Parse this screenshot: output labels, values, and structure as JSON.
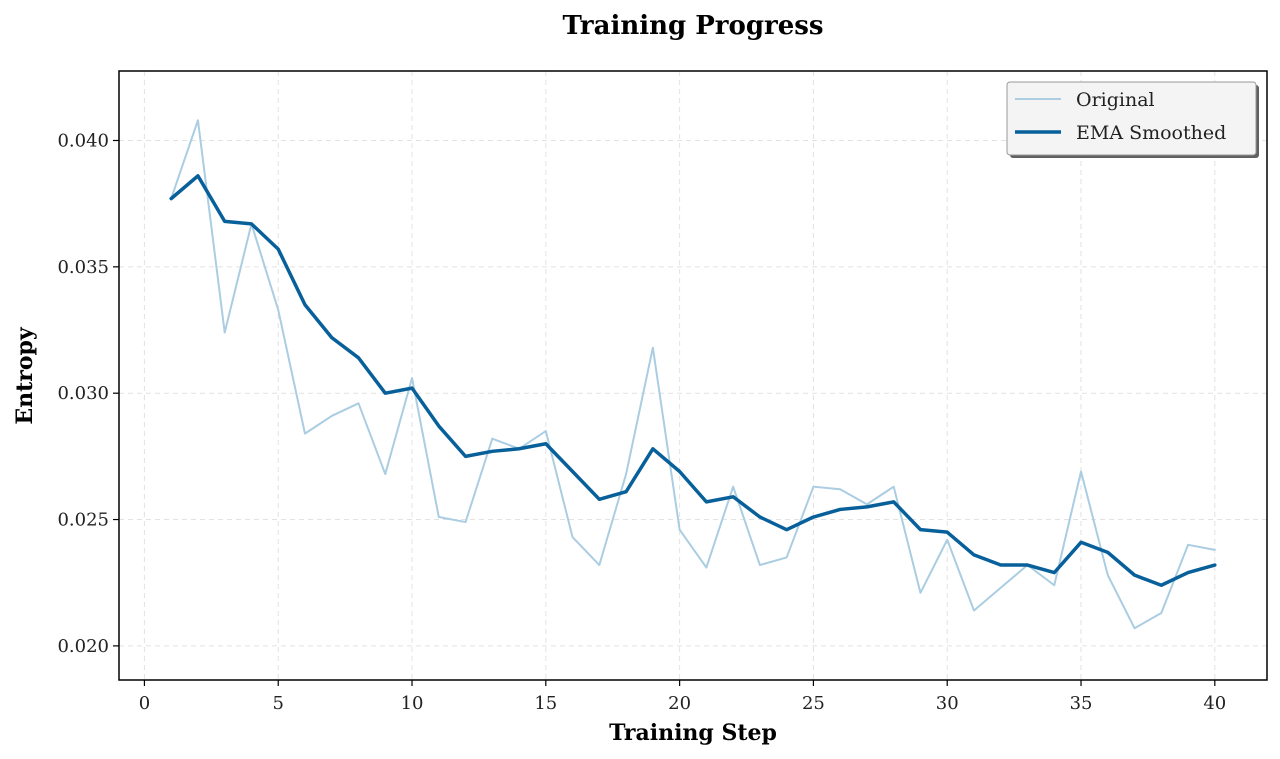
{
  "chart_data": {
    "type": "line",
    "title": "Training Progress",
    "xlabel": "Training Step",
    "ylabel": "Entropy",
    "xlim": [
      -0.95,
      41.95
    ],
    "ylim": [
      0.01865,
      0.04275
    ],
    "xticks": [
      0,
      5,
      10,
      15,
      20,
      25,
      30,
      35,
      40
    ],
    "xtick_labels": [
      "0",
      "5",
      "10",
      "15",
      "20",
      "25",
      "30",
      "35",
      "40"
    ],
    "yticks": [
      0.02,
      0.025,
      0.03,
      0.035,
      0.04
    ],
    "ytick_labels": [
      "0.020",
      "0.025",
      "0.030",
      "0.035",
      "0.040"
    ],
    "grid": true,
    "legend_position": "upper right",
    "x": [
      1,
      2,
      3,
      4,
      5,
      6,
      7,
      8,
      9,
      10,
      11,
      12,
      13,
      14,
      15,
      16,
      17,
      18,
      19,
      20,
      21,
      22,
      23,
      24,
      25,
      26,
      27,
      28,
      29,
      30,
      31,
      32,
      33,
      34,
      35,
      36,
      37,
      38,
      39,
      40
    ],
    "series": [
      {
        "name": "Original",
        "color": "#aacde2",
        "values": [
          0.0377,
          0.0408,
          0.0324,
          0.0367,
          0.0333,
          0.0284,
          0.0291,
          0.0296,
          0.0268,
          0.0306,
          0.0251,
          0.0249,
          0.0282,
          0.0278,
          0.0285,
          0.0243,
          0.0232,
          0.0268,
          0.0318,
          0.0246,
          0.0231,
          0.0263,
          0.0232,
          0.0235,
          0.0263,
          0.0262,
          0.0256,
          0.0263,
          0.0221,
          0.0242,
          0.0214,
          0.0223,
          0.0232,
          0.0224,
          0.0269,
          0.0228,
          0.0207,
          0.0213,
          0.024,
          0.0238
        ]
      },
      {
        "name": "EMA Smoothed",
        "color": "#08609b",
        "values": [
          0.0377,
          0.0386,
          0.0368,
          0.0367,
          0.0357,
          0.0335,
          0.0322,
          0.0314,
          0.03,
          0.0302,
          0.0287,
          0.0275,
          0.0277,
          0.0278,
          0.028,
          0.0269,
          0.0258,
          0.0261,
          0.0278,
          0.0269,
          0.0257,
          0.0259,
          0.0251,
          0.0246,
          0.0251,
          0.0254,
          0.0255,
          0.0257,
          0.0246,
          0.0245,
          0.0236,
          0.0232,
          0.0232,
          0.0229,
          0.0241,
          0.0237,
          0.0228,
          0.0224,
          0.0229,
          0.0232
        ]
      }
    ]
  }
}
